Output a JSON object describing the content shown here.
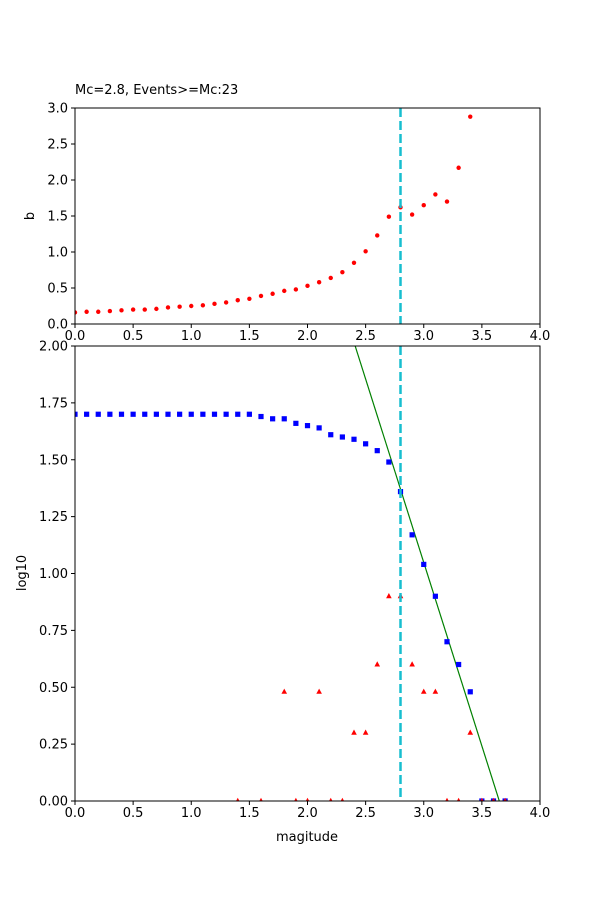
{
  "colors": {
    "b_points": "#ff0000",
    "cumulative_points": "#0000ff",
    "noncumulative_points": "#ff0000",
    "fit_line": "#008000",
    "mc_line": "#17becf"
  },
  "chart_data": [
    {
      "type": "scatter",
      "title": "Mc=2.8, Events>=Mc:23",
      "xlabel": "",
      "ylabel": "b",
      "xlim": [
        0,
        4
      ],
      "ylim": [
        0,
        3
      ],
      "xticks": [
        "0.0",
        "0.5",
        "1.0",
        "1.5",
        "2.0",
        "2.5",
        "3.0",
        "3.5",
        "4.0"
      ],
      "yticks": [
        "0.0",
        "0.5",
        "1.0",
        "1.5",
        "2.0",
        "2.5",
        "3.0"
      ],
      "mc": 2.8,
      "series": [
        {
          "marker": "circle",
          "points": [
            [
              0.0,
              0.16
            ],
            [
              0.1,
              0.17
            ],
            [
              0.2,
              0.17
            ],
            [
              0.3,
              0.18
            ],
            [
              0.4,
              0.19
            ],
            [
              0.5,
              0.2
            ],
            [
              0.6,
              0.2
            ],
            [
              0.7,
              0.21
            ],
            [
              0.8,
              0.23
            ],
            [
              0.9,
              0.24
            ],
            [
              1.0,
              0.25
            ],
            [
              1.1,
              0.26
            ],
            [
              1.2,
              0.28
            ],
            [
              1.3,
              0.3
            ],
            [
              1.4,
              0.33
            ],
            [
              1.5,
              0.35
            ],
            [
              1.6,
              0.39
            ],
            [
              1.7,
              0.42
            ],
            [
              1.8,
              0.46
            ],
            [
              1.9,
              0.48
            ],
            [
              2.0,
              0.53
            ],
            [
              2.1,
              0.58
            ],
            [
              2.2,
              0.64
            ],
            [
              2.3,
              0.72
            ],
            [
              2.4,
              0.85
            ],
            [
              2.5,
              1.01
            ],
            [
              2.6,
              1.23
            ],
            [
              2.7,
              1.49
            ],
            [
              2.8,
              1.62
            ],
            [
              2.9,
              1.52
            ],
            [
              3.0,
              1.65
            ],
            [
              3.1,
              1.8
            ],
            [
              3.2,
              1.7
            ],
            [
              3.3,
              2.17
            ],
            [
              3.4,
              2.88
            ]
          ]
        }
      ]
    },
    {
      "type": "scatter",
      "title": "",
      "xlabel": "magitude",
      "ylabel": "log10",
      "xlim": [
        0,
        4
      ],
      "ylim": [
        0,
        2
      ],
      "xticks": [
        "0.0",
        "0.5",
        "1.0",
        "1.5",
        "2.0",
        "2.5",
        "3.0",
        "3.5",
        "4.0"
      ],
      "yticks": [
        "0.00",
        "0.25",
        "0.50",
        "0.75",
        "1.00",
        "1.25",
        "1.50",
        "1.75",
        "2.00"
      ],
      "mc": 2.8,
      "fit_line": {
        "points": [
          [
            2.41,
            2.0
          ],
          [
            3.65,
            0.0
          ]
        ]
      },
      "series": [
        {
          "marker": "square",
          "points": [
            [
              0.0,
              1.7
            ],
            [
              0.1,
              1.7
            ],
            [
              0.2,
              1.7
            ],
            [
              0.3,
              1.7
            ],
            [
              0.4,
              1.7
            ],
            [
              0.5,
              1.7
            ],
            [
              0.6,
              1.7
            ],
            [
              0.7,
              1.7
            ],
            [
              0.8,
              1.7
            ],
            [
              0.9,
              1.7
            ],
            [
              1.0,
              1.7
            ],
            [
              1.1,
              1.7
            ],
            [
              1.2,
              1.7
            ],
            [
              1.3,
              1.7
            ],
            [
              1.4,
              1.7
            ],
            [
              1.5,
              1.7
            ],
            [
              1.6,
              1.69
            ],
            [
              1.7,
              1.68
            ],
            [
              1.8,
              1.68
            ],
            [
              1.9,
              1.66
            ],
            [
              2.0,
              1.65
            ],
            [
              2.1,
              1.64
            ],
            [
              2.2,
              1.61
            ],
            [
              2.3,
              1.6
            ],
            [
              2.4,
              1.59
            ],
            [
              2.5,
              1.57
            ],
            [
              2.6,
              1.54
            ],
            [
              2.7,
              1.49
            ],
            [
              2.8,
              1.36
            ],
            [
              2.9,
              1.17
            ],
            [
              3.0,
              1.04
            ],
            [
              3.1,
              0.9
            ],
            [
              3.2,
              0.7
            ],
            [
              3.3,
              0.6
            ],
            [
              3.4,
              0.48
            ],
            [
              3.5,
              0.0
            ],
            [
              3.6,
              0.0
            ],
            [
              3.7,
              0.0
            ]
          ]
        },
        {
          "marker": "triangle",
          "points": [
            [
              1.4,
              0.0
            ],
            [
              1.6,
              0.0
            ],
            [
              1.8,
              0.48
            ],
            [
              1.9,
              0.0
            ],
            [
              2.0,
              0.0
            ],
            [
              2.1,
              0.48
            ],
            [
              2.2,
              0.0
            ],
            [
              2.3,
              0.0
            ],
            [
              2.4,
              0.3
            ],
            [
              2.5,
              0.3
            ],
            [
              2.6,
              0.6
            ],
            [
              2.7,
              0.9
            ],
            [
              2.8,
              0.9
            ],
            [
              2.9,
              0.6
            ],
            [
              3.0,
              0.48
            ],
            [
              3.1,
              0.48
            ],
            [
              3.2,
              0.0
            ],
            [
              3.3,
              0.0
            ],
            [
              3.4,
              0.3
            ],
            [
              3.5,
              0.0
            ],
            [
              3.6,
              0.0
            ],
            [
              3.7,
              0.0
            ]
          ]
        }
      ]
    }
  ]
}
